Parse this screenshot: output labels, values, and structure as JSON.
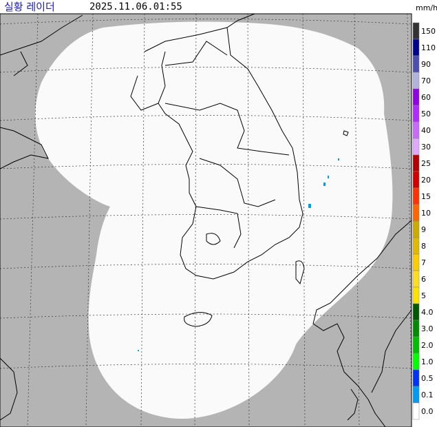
{
  "header": {
    "title": "실황 레이더",
    "timestamp": "2025.11.06.01:55"
  },
  "legend": {
    "unit": "mm/h",
    "levels": [
      {
        "label": "150",
        "color": "#333333"
      },
      {
        "label": "110",
        "color": "#000390"
      },
      {
        "label": "90",
        "color": "#4c4eb1"
      },
      {
        "label": "70",
        "color": "#b3b4de"
      },
      {
        "label": "60",
        "color": "#9300e4"
      },
      {
        "label": "50",
        "color": "#b329ff"
      },
      {
        "label": "40",
        "color": "#c969ff"
      },
      {
        "label": "30",
        "color": "#e0a9ff"
      },
      {
        "label": "25",
        "color": "#b40000"
      },
      {
        "label": "20",
        "color": "#d20000"
      },
      {
        "label": "15",
        "color": "#ff3200"
      },
      {
        "label": "10",
        "color": "#ff6600"
      },
      {
        "label": "9",
        "color": "#ccaa00"
      },
      {
        "label": "8",
        "color": "#e0b900"
      },
      {
        "label": "7",
        "color": "#f9cd00"
      },
      {
        "label": "6",
        "color": "#ffdc1f"
      },
      {
        "label": "5",
        "color": "#ffe100"
      },
      {
        "label": "4.0",
        "color": "#005a00"
      },
      {
        "label": "3.0",
        "color": "#008c00"
      },
      {
        "label": "2.0",
        "color": "#00be00"
      },
      {
        "label": "1.0",
        "color": "#00ff00"
      },
      {
        "label": "0.5",
        "color": "#0033f5"
      },
      {
        "label": "0.1",
        "color": "#009bf5"
      },
      {
        "label": "0.0",
        "color": "#ffffff"
      }
    ]
  }
}
